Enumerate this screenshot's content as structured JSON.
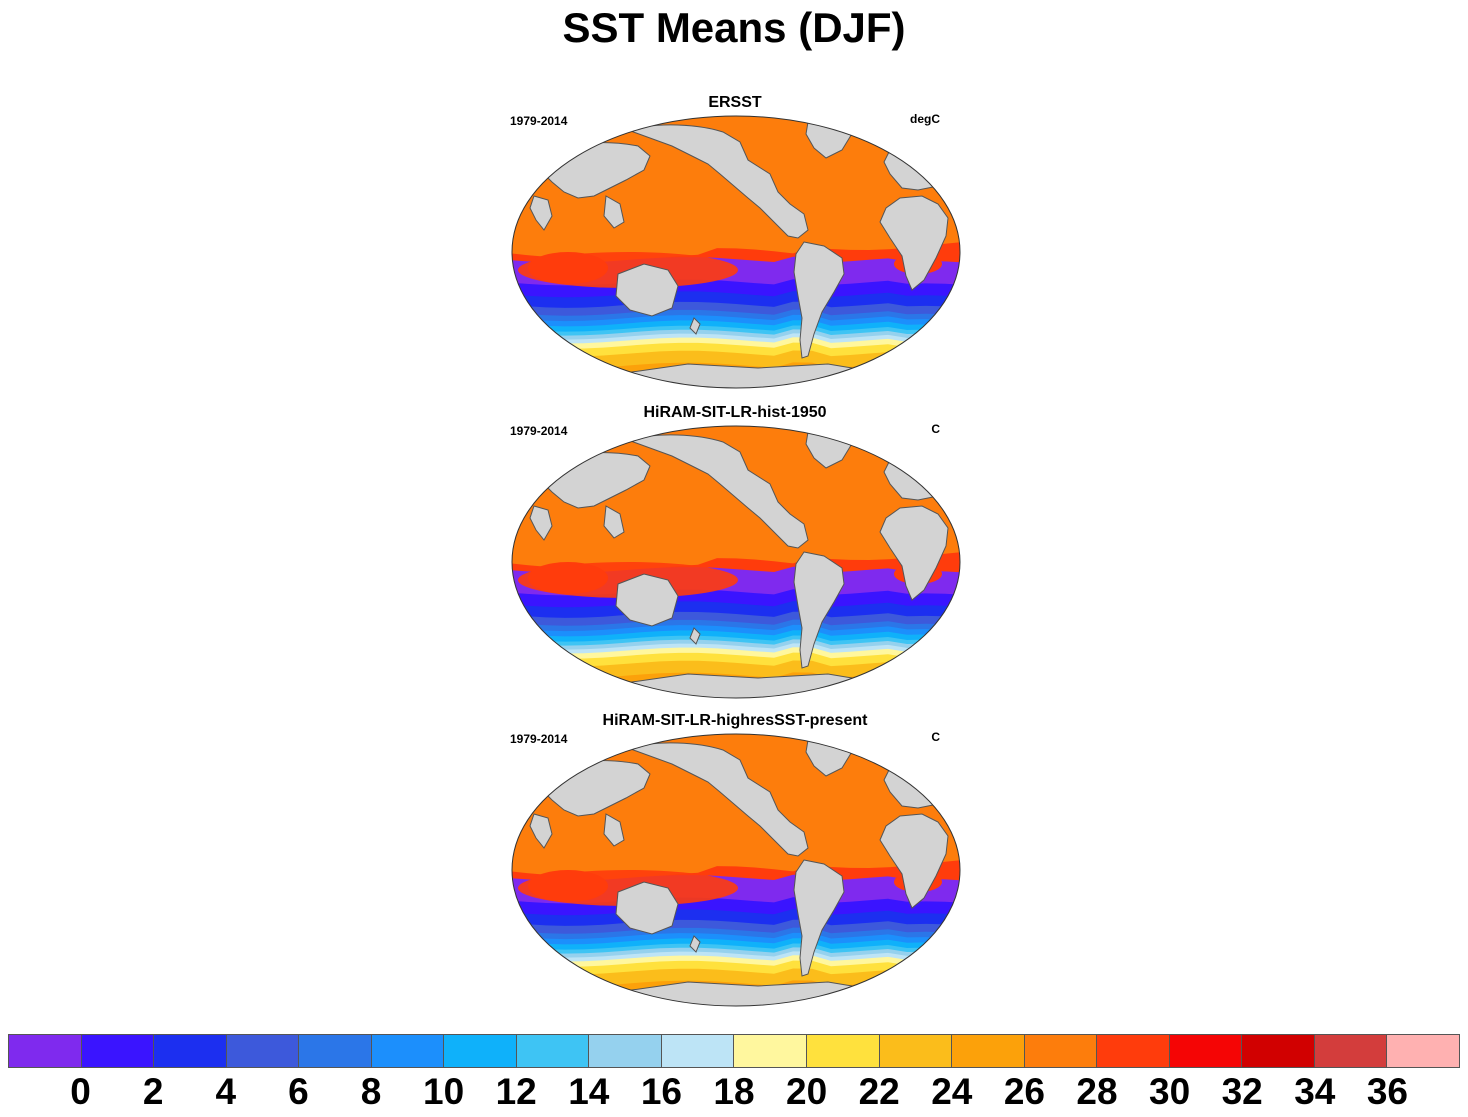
{
  "title": "SST Means (DJF)",
  "panels": [
    {
      "title": "ERSST",
      "period": "1979-2014",
      "units": "degC"
    },
    {
      "title": "HiRAM-SIT-LR-hist-1950",
      "period": "1979-2014",
      "units": "C"
    },
    {
      "title": "HiRAM-SIT-LR-highresSST-present",
      "period": "1979-2014",
      "units": "C"
    }
  ],
  "colorbar": {
    "labels": [
      "0",
      "2",
      "4",
      "6",
      "8",
      "10",
      "12",
      "14",
      "16",
      "18",
      "20",
      "22",
      "24",
      "26",
      "28",
      "30",
      "32",
      "34",
      "36"
    ],
    "colors": [
      "#7f2aee",
      "#3a14ff",
      "#1c2ff0",
      "#3d59db",
      "#2b76e8",
      "#1c8ffc",
      "#0fb1fa",
      "#3ec4f4",
      "#95d1ee",
      "#bde4f6",
      "#fff79e",
      "#ffe13d",
      "#fbbd1b",
      "#fca10a",
      "#fd7d0c",
      "#ff3c0c",
      "#f50505",
      "#d10000",
      "#d33d3c",
      "#ffb1b1"
    ]
  },
  "map_colors": {
    "land": "#d3d3d3",
    "coast": "#555555"
  }
}
